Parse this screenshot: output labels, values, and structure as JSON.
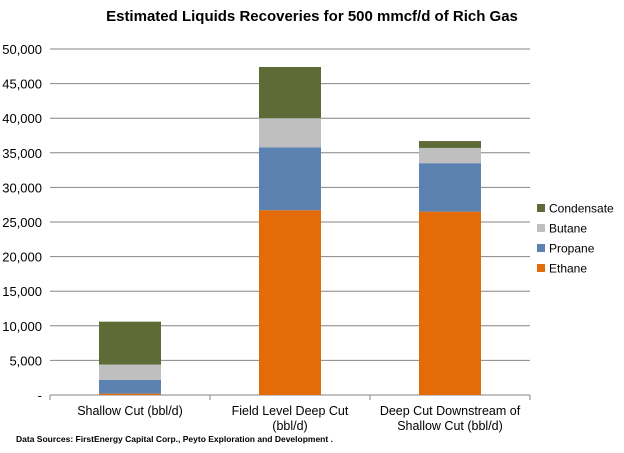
{
  "chart_data": {
    "type": "bar",
    "stacked": true,
    "title": "Estimated Liquids Recoveries for 500 mmcf/d of Rich Gas",
    "xlabel": "",
    "ylabel": "",
    "ylim": [
      0,
      50000
    ],
    "yticks": [
      "-",
      "5,000",
      "10,000",
      "15,000",
      "20,000",
      "25,000",
      "30,000",
      "35,000",
      "40,000",
      "45,000",
      "50,000"
    ],
    "grid": true,
    "legend_position": "right",
    "categories": [
      [
        "Shallow Cut (bbl/d)"
      ],
      [
        "Field Level Deep Cut",
        "(bbl/d)"
      ],
      [
        "Deep Cut Downstream of",
        "Shallow Cut (bbl/d)"
      ]
    ],
    "series": [
      {
        "name": "Ethane",
        "color": "#E36C09",
        "values": [
          200,
          26700,
          26500
        ]
      },
      {
        "name": "Propane",
        "color": "#5B82B0",
        "values": [
          2000,
          9100,
          7000
        ]
      },
      {
        "name": "Butane",
        "color": "#BFBFBF",
        "values": [
          2200,
          4200,
          2200
        ]
      },
      {
        "name": "Condensate",
        "color": "#5F6B37",
        "values": [
          6200,
          7400,
          1000
        ]
      }
    ],
    "source": "Data Sources: FirstEnergy Capital Corp., Peyto Exploration and Development ."
  }
}
